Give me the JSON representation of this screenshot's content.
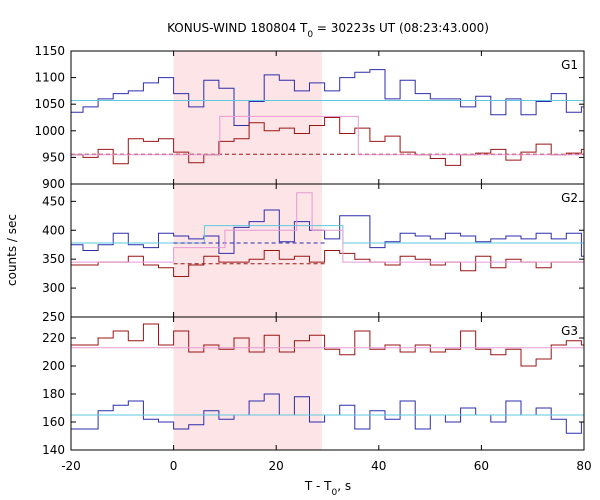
{
  "figure": {
    "title_prefix": "KONUS-WIND 180804 T",
    "title_sub": "0",
    "title_suffix": " = 30223s UT (08:23:43.000)",
    "xlabel_prefix": "T - T",
    "xlabel_sub": "0",
    "xlabel_suffix": ", s",
    "ylabel": "counts / sec"
  },
  "chart_data": {
    "type": "line",
    "x_range": [
      -20,
      80
    ],
    "x_ticks": [
      -20,
      0,
      20,
      40,
      60,
      80
    ],
    "x_tick_labels": [
      "-20",
      "0",
      "20",
      "40",
      "60",
      "80"
    ],
    "highlight_interval": [
      0,
      28.9
    ],
    "highlight_color": "#fde4e6",
    "bin_width": 2.944,
    "x_start": -20.608,
    "panels": [
      {
        "name": "G1",
        "ylim": [
          900,
          1150
        ],
        "yticks": [
          900,
          950,
          1000,
          1050,
          1100,
          1150
        ],
        "series": [
          {
            "role": "counts-upper",
            "color": "#2d2dad",
            "values": [
              1035,
              1045,
              1060,
              1070,
              1075,
              1090,
              1100,
              1070,
              1045,
              1095,
              1080,
              1010,
              1055,
              1105,
              1095,
              1075,
              1090,
              1075,
              1100,
              1110,
              1115,
              1060,
              1095,
              1070,
              1060,
              1060,
              1045,
              1065,
              1030,
              1060,
              1030,
              1055,
              1070,
              1035,
              1045,
              1040,
              1055,
              1035,
              1030,
              1055
            ]
          },
          {
            "role": "counts-lower",
            "color": "#9a1414",
            "values": [
              955,
              950,
              965,
              938,
              985,
              980,
              985,
              960,
              940,
              955,
              980,
              985,
              1015,
              1000,
              1005,
              995,
              1010,
              1025,
              995,
              1005,
              980,
              990,
              960,
              955,
              948,
              935,
              955,
              958,
              965,
              945,
              960,
              975,
              955,
              958,
              965,
              975,
              955,
              948,
              960,
              975
            ]
          },
          {
            "role": "background-upper",
            "color": "#5ec8e0",
            "dashed": false,
            "segments": [
              [
                -20,
                80,
                1057
              ]
            ]
          },
          {
            "role": "background-lower",
            "color": "#9a1414",
            "dashed": true,
            "segments": [
              [
                -20,
                80,
                956
              ]
            ]
          },
          {
            "role": "fit-profile",
            "color": "#e69ad6",
            "dashed": false,
            "segments": [
              [
                -20,
                9,
                955
              ],
              [
                9,
                36,
                1027
              ],
              [
                36,
                80,
                955
              ]
            ]
          }
        ]
      },
      {
        "name": "G2",
        "ylim": [
          250,
          480
        ],
        "yticks": [
          250,
          300,
          350,
          400,
          450
        ],
        "series": [
          {
            "role": "counts-upper",
            "color": "#2d2dad",
            "values": [
              375,
              365,
              375,
              395,
              375,
              370,
              395,
              390,
              385,
              390,
              360,
              405,
              415,
              435,
              380,
              415,
              400,
              385,
              425,
              425,
              370,
              380,
              395,
              390,
              385,
              395,
              390,
              380,
              385,
              390,
              385,
              395,
              385,
              395,
              355,
              385,
              380,
              375,
              385,
              375
            ]
          },
          {
            "role": "counts-lower",
            "color": "#9a1414",
            "values": [
              340,
              340,
              345,
              345,
              355,
              340,
              335,
              320,
              340,
              355,
              345,
              345,
              350,
              365,
              350,
              355,
              345,
              365,
              360,
              350,
              345,
              340,
              355,
              350,
              340,
              345,
              330,
              355,
              335,
              350,
              345,
              335,
              345,
              345,
              345,
              340,
              340,
              330,
              335,
              345
            ]
          },
          {
            "role": "background-upper",
            "color": "#5ec8e0",
            "dashed": false,
            "segments": [
              [
                -20,
                6,
                378
              ],
              [
                6,
                33,
                408
              ],
              [
                33,
                80,
                378
              ]
            ]
          },
          {
            "role": "background-dashed-upper",
            "color": "#2d2dad",
            "dashed": true,
            "segments": [
              [
                0,
                30,
                378
              ]
            ]
          },
          {
            "role": "background-lower",
            "color": "#9a1414",
            "dashed": true,
            "segments": [
              [
                0,
                30,
                342
              ]
            ]
          },
          {
            "role": "fit-profile",
            "color": "#e69ad6",
            "dashed": false,
            "segments": [
              [
                -20,
                0,
                345
              ],
              [
                0,
                10,
                370
              ],
              [
                10,
                24,
                400
              ],
              [
                24,
                27,
                465
              ],
              [
                27,
                33,
                400
              ],
              [
                33,
                80,
                345
              ]
            ]
          }
        ]
      },
      {
        "name": "G3",
        "ylim": [
          140,
          235
        ],
        "yticks": [
          140,
          160,
          180,
          200,
          220
        ],
        "series": [
          {
            "role": "counts-upper",
            "color": "#9a1414",
            "values": [
              215,
              215,
              220,
              225,
              218,
              230,
              215,
              225,
              210,
              215,
              212,
              220,
              210,
              222,
              210,
              218,
              222,
              212,
              208,
              225,
              212,
              215,
              210,
              215,
              210,
              212,
              225,
              212,
              208,
              212,
              200,
              205,
              215,
              218,
              215,
              218,
              215,
              210,
              212,
              205
            ]
          },
          {
            "role": "counts-lower",
            "color": "#2d2dad",
            "values": [
              155,
              155,
              168,
              172,
              175,
              162,
              160,
              155,
              158,
              168,
              162,
              165,
              175,
              180,
              165,
              178,
              160,
              165,
              172,
              155,
              168,
              162,
              175,
              155,
              165,
              160,
              170,
              165,
              160,
              175,
              165,
              170,
              162,
              152,
              160,
              158,
              168,
              162,
              158,
              165
            ]
          },
          {
            "role": "background-upper",
            "color": "#e69ad6",
            "dashed": false,
            "segments": [
              [
                -20,
                80,
                213
              ]
            ]
          },
          {
            "role": "background-lower",
            "color": "#5ec8e0",
            "dashed": false,
            "segments": [
              [
                -20,
                80,
                165
              ]
            ]
          }
        ]
      }
    ]
  }
}
